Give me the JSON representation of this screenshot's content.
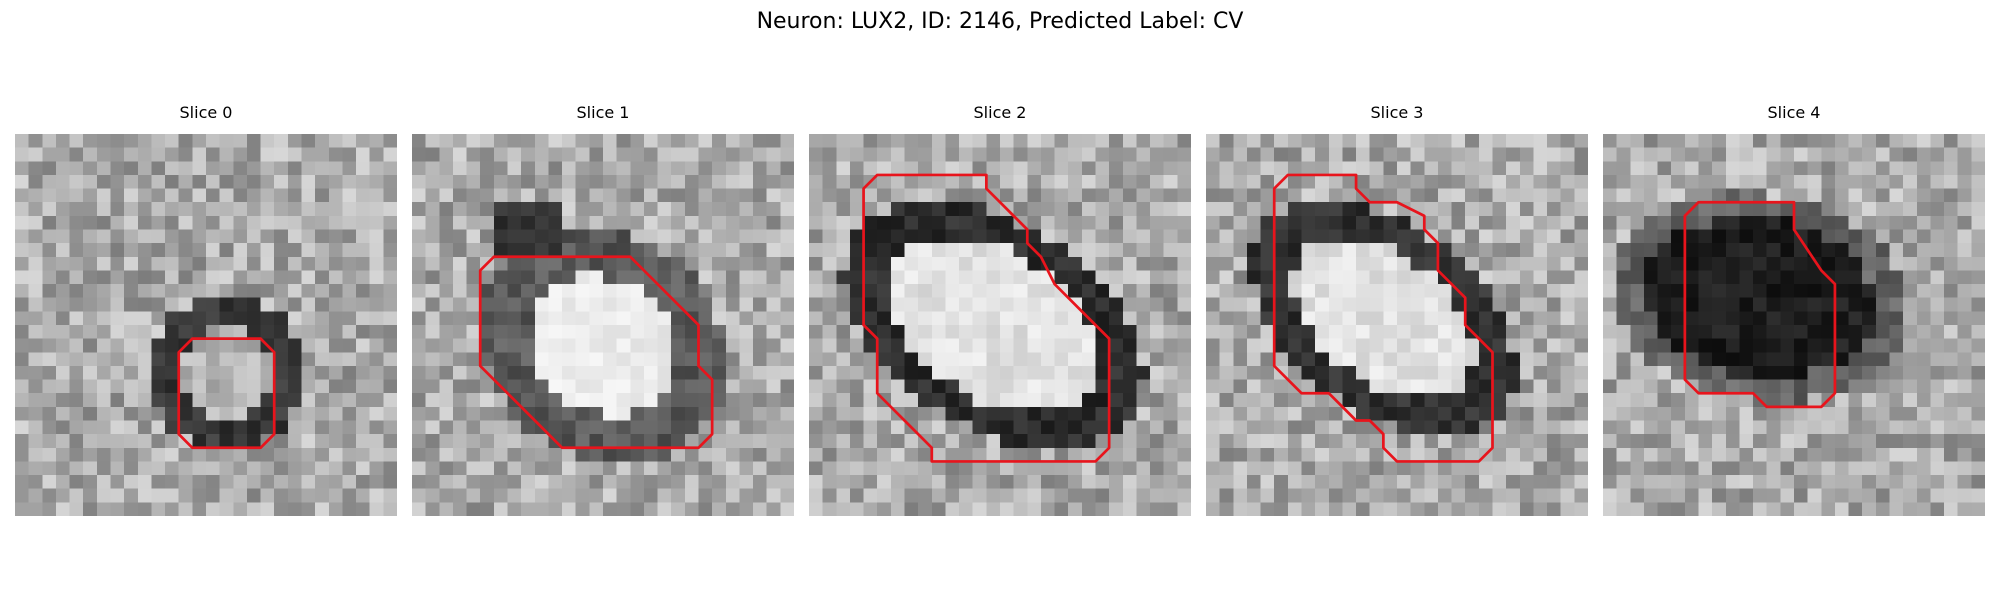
{
  "figure": {
    "title": "Neuron: LUX2, ID: 2146, Predicted Label: CV"
  },
  "contour_color": "#e8141c",
  "panels": [
    {
      "title": "Slice 0",
      "kind": "small-ring",
      "contour": [
        [
          13,
          15
        ],
        [
          12,
          16
        ],
        [
          12,
          22
        ],
        [
          13,
          23
        ],
        [
          18,
          23
        ],
        [
          19,
          22
        ],
        [
          19,
          16
        ],
        [
          18,
          15
        ]
      ]
    },
    {
      "title": "Slice 1",
      "kind": "bright-blob",
      "contour": [
        [
          6,
          9
        ],
        [
          5,
          10
        ],
        [
          5,
          17
        ],
        [
          7,
          19
        ],
        [
          10,
          22
        ],
        [
          11,
          23
        ],
        [
          14,
          23
        ],
        [
          21,
          23
        ],
        [
          22,
          22
        ],
        [
          22,
          18
        ],
        [
          21,
          17
        ],
        [
          21,
          14
        ],
        [
          16,
          9
        ]
      ]
    },
    {
      "title": "Slice 2",
      "kind": "large-ring",
      "contour": [
        [
          5,
          3
        ],
        [
          4,
          4
        ],
        [
          4,
          14
        ],
        [
          5,
          15
        ],
        [
          5,
          19
        ],
        [
          7,
          21
        ],
        [
          8,
          22
        ],
        [
          9,
          23
        ],
        [
          9,
          24
        ],
        [
          21,
          24
        ],
        [
          22,
          23
        ],
        [
          22,
          15
        ],
        [
          20,
          13
        ],
        [
          18,
          11
        ],
        [
          17,
          9
        ],
        [
          16,
          8
        ],
        [
          16,
          7
        ],
        [
          15,
          6
        ],
        [
          14,
          5
        ],
        [
          13,
          4
        ],
        [
          13,
          3
        ]
      ]
    },
    {
      "title": "Slice 3",
      "kind": "tilted-ring",
      "contour": [
        [
          6,
          3
        ],
        [
          5,
          4
        ],
        [
          5,
          17
        ],
        [
          6,
          18
        ],
        [
          7,
          19
        ],
        [
          9,
          19
        ],
        [
          11,
          21
        ],
        [
          12,
          21
        ],
        [
          13,
          22
        ],
        [
          13,
          23
        ],
        [
          14,
          24
        ],
        [
          20,
          24
        ],
        [
          21,
          23
        ],
        [
          21,
          16
        ],
        [
          20,
          15
        ],
        [
          19,
          14
        ],
        [
          19,
          12
        ],
        [
          18,
          11
        ],
        [
          17,
          10
        ],
        [
          17,
          8
        ],
        [
          16,
          7
        ],
        [
          16,
          6
        ],
        [
          14,
          5
        ],
        [
          12,
          5
        ],
        [
          11,
          4
        ],
        [
          11,
          3
        ]
      ]
    },
    {
      "title": "Slice 4",
      "kind": "dark-blob",
      "contour": [
        [
          6,
          6
        ],
        [
          6,
          18
        ],
        [
          7,
          19
        ],
        [
          11,
          19
        ],
        [
          12,
          20
        ],
        [
          16,
          20
        ],
        [
          17,
          19
        ],
        [
          17,
          11
        ],
        [
          16,
          10
        ],
        [
          14,
          7
        ],
        [
          14,
          5
        ],
        [
          7,
          5
        ]
      ]
    }
  ]
}
